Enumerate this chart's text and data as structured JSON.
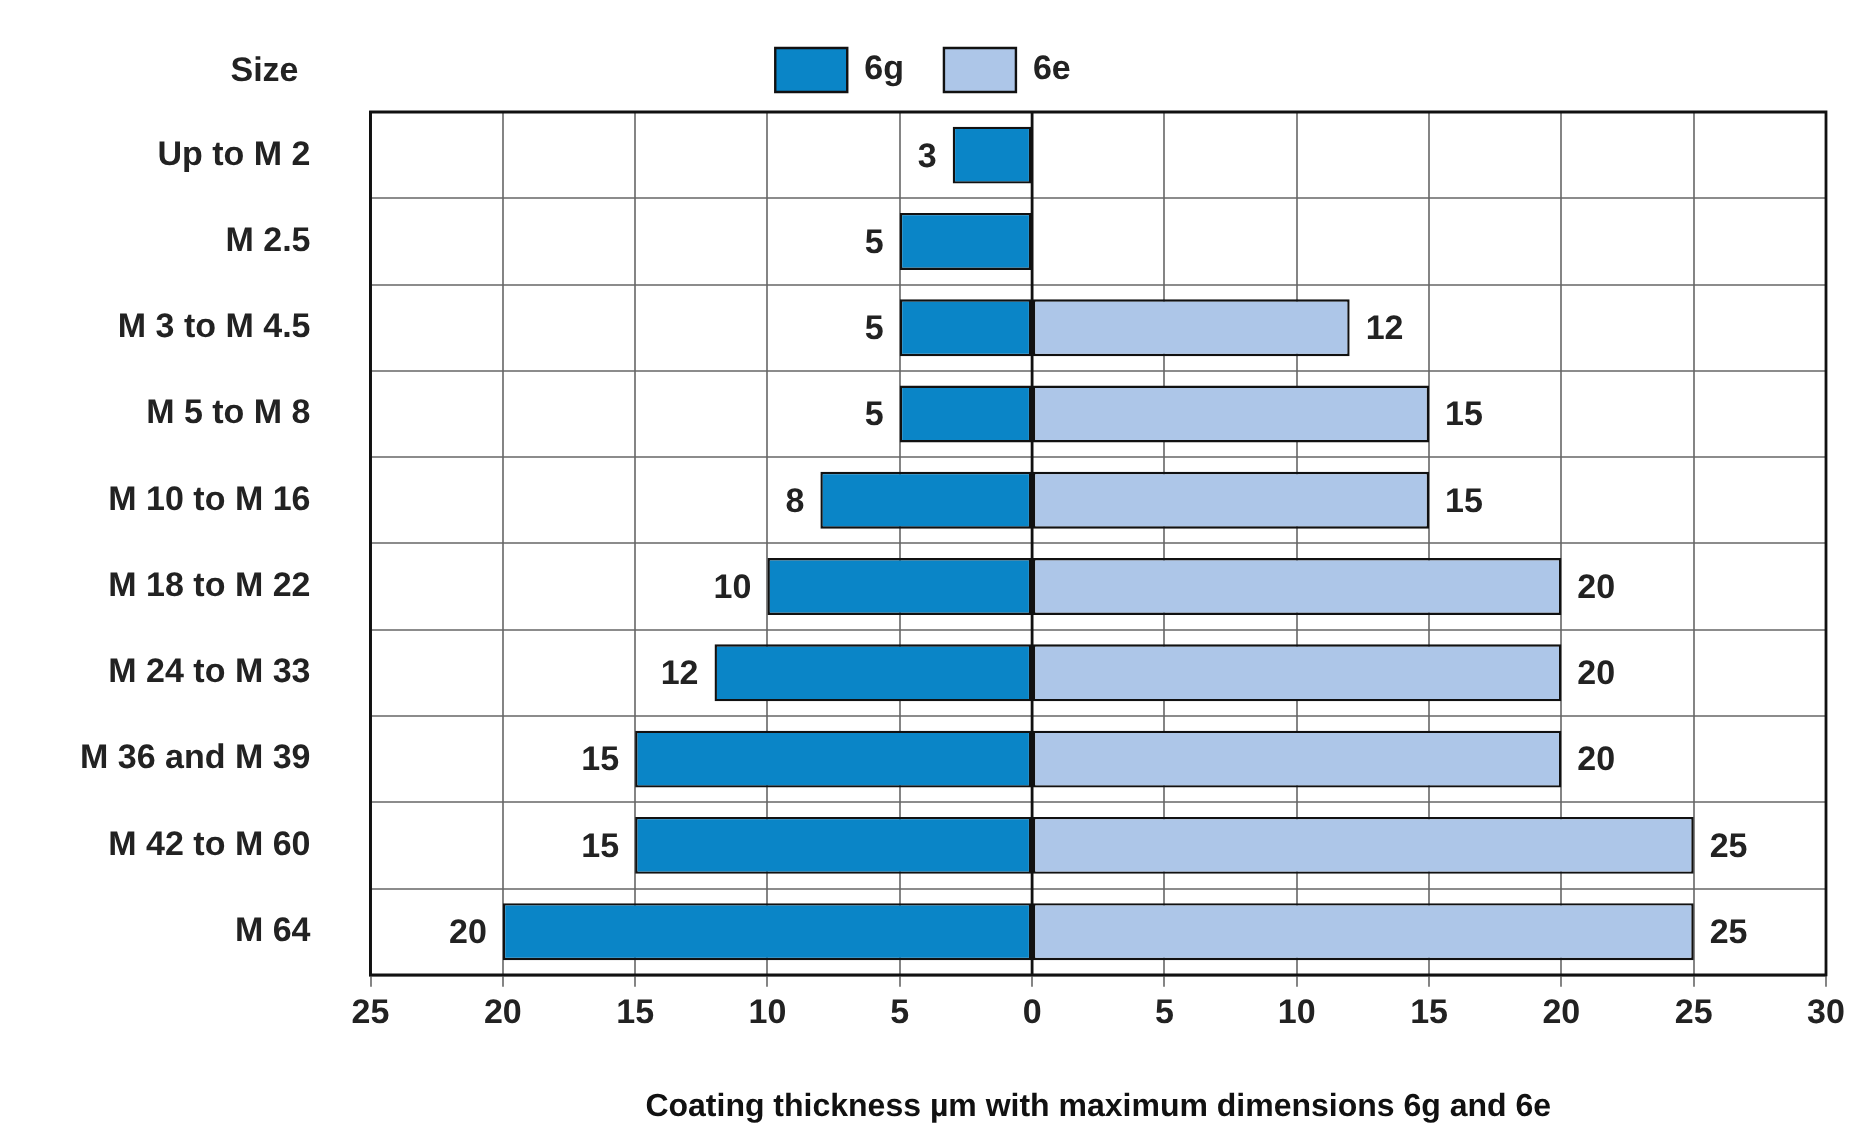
{
  "chart_data": {
    "type": "bar",
    "orientation": "horizontal",
    "data_labels": true,
    "ylabel": "Size",
    "xlabel": "Coating thickness µm with maximum dimensions 6g and 6e",
    "categories": [
      "Up to M 2",
      "M 2.5",
      "M 3 to M 4.5",
      "M 5 to M 8",
      "M 10 to M 16",
      "M 18 to M 22",
      "M 24 to M 33",
      "M 36 and M 39",
      "M 42 to M 60",
      "M 64"
    ],
    "series": [
      {
        "name": "6g",
        "color": "#0a85c7",
        "values": [
          3,
          5,
          5,
          5,
          8,
          10,
          12,
          15,
          15,
          20
        ],
        "base": [
          -3,
          -5,
          -5,
          -5,
          -8,
          -10,
          -12,
          -15,
          -15,
          -20
        ]
      },
      {
        "name": "6e",
        "color": "#adc6e8",
        "values": [
          null,
          null,
          12,
          15,
          15,
          20,
          20,
          20,
          25,
          25
        ]
      }
    ],
    "xlim": [
      -25,
      30
    ],
    "xticks": [
      {
        "value": -25,
        "label": "25"
      },
      {
        "value": -20,
        "label": "20"
      },
      {
        "value": -15,
        "label": "15"
      },
      {
        "value": -10,
        "label": "10"
      },
      {
        "value": -5,
        "label": "5"
      },
      0,
      5,
      10,
      15,
      20,
      25,
      30
    ],
    "grid": true,
    "legend": "top"
  }
}
